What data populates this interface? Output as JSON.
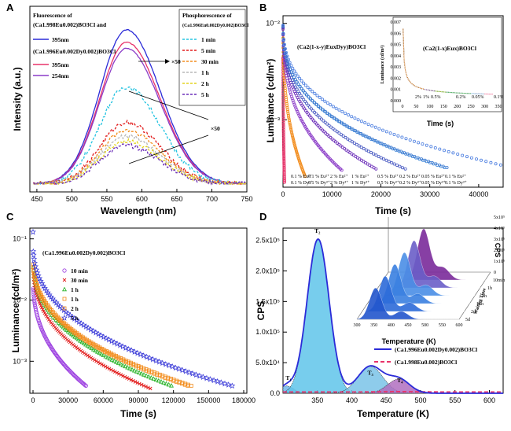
{
  "figure": {
    "panels": [
      {
        "letter": "A"
      },
      {
        "letter": "B"
      },
      {
        "letter": "C"
      },
      {
        "letter": "D"
      }
    ]
  },
  "chart_data": [
    {
      "id": "A",
      "type": "line",
      "xlabel": "Wavelength (nm)",
      "ylabel": "Intensity (a.u.)",
      "xlim": [
        440,
        750
      ],
      "xticks": [
        450,
        500,
        550,
        600,
        650,
        700,
        750
      ],
      "legend_left_title_1": "Fluorescence of",
      "legend_left_title_2": "(Ca1.998Eu0.002)BO3Cl and",
      "legend_left_title_3": "(Ca1.996Eu0.002Dy0.002)BO3Cl",
      "legend_right_title_1": "Phosphorescence of",
      "legend_right_title_2": "(Ca1.996Eu0.002Dy0.002)BO3Cl",
      "annotation": "×50",
      "series": [
        {
          "name": "395nm",
          "group": "fluor_Eu",
          "color": "#2b2bd8",
          "dash": "",
          "peak_nm": 578,
          "peak": 1.0
        },
        {
          "name": "395nm",
          "group": "fluor_EuDy",
          "color": "#e8336a",
          "dash": "",
          "peak_nm": 578,
          "peak": 0.92
        },
        {
          "name": "254nm",
          "group": "fluor_EuDy",
          "color": "#8b3cc8",
          "dash": "",
          "peak_nm": 578,
          "peak": 0.88
        },
        {
          "name": "1 min",
          "group": "phos",
          "color": "#22c3e0",
          "dash": "3,2",
          "peak_nm": 578,
          "peak": 0.63
        },
        {
          "name": "5 min",
          "group": "phos",
          "color": "#e21b1b",
          "dash": "3,2",
          "peak_nm": 578,
          "peak": 0.4
        },
        {
          "name": "30 min",
          "group": "phos",
          "color": "#f28c1c",
          "dash": "3,2",
          "peak_nm": 578,
          "peak": 0.35
        },
        {
          "name": "1 h",
          "group": "phos",
          "color": "#b7b7b7",
          "dash": "3,2",
          "peak_nm": 578,
          "peak": 0.31
        },
        {
          "name": "2 h",
          "group": "phos",
          "color": "#e4d41f",
          "dash": "3,2",
          "peak_nm": 578,
          "peak": 0.28
        },
        {
          "name": "5 h",
          "group": "phos",
          "color": "#6a2cb8",
          "dash": "3,2",
          "peak_nm": 578,
          "peak": 0.25
        }
      ]
    },
    {
      "id": "B",
      "type": "scatter",
      "xlabel": "Time (s)",
      "ylabel": "Luminance (cd/m²)",
      "xlim": [
        0,
        45000
      ],
      "xticks": [
        0,
        10000,
        20000,
        30000,
        40000
      ],
      "yscale": "log",
      "ylim": [
        0.0002,
        0.012
      ],
      "yticks_labels": [
        "10⁻²",
        "10⁻³"
      ],
      "main_label": "(Ca2(1-x-y)EuxDyy)BO3Cl",
      "inset_label": "(Ca2(1-x)Eux)BO3Cl",
      "inset_xlabel": "Time (s)",
      "inset_ylabel": "Luminance (cd/m²)",
      "inset_xticks": [
        0,
        50,
        100,
        150,
        200,
        250,
        300,
        350
      ],
      "inset_yticks": [
        "0.000",
        "0.001",
        "0.002",
        "0.003",
        "0.004",
        "0.005",
        "0.006",
        "0.007"
      ],
      "inset_series_labels": [
        "2%",
        "1%",
        "0.5%",
        "0.2%",
        "0.05%",
        "0.1%"
      ],
      "series_labels": [
        {
          "l1": "0.1 % Eu²⁺",
          "l2": "0.1 % Dy³⁺"
        },
        {
          "l1": "0.1 % Eu²⁺",
          "l2": "0.1 % Dy³⁺"
        },
        {
          "l1": "2 % Eu²⁺",
          "l2": "2 % Dy³⁺"
        },
        {
          "l1": "1 % Eu²⁺",
          "l2": "1 % Dy³⁺"
        },
        {
          "l1": "0.5 % Eu²⁺",
          "l2": "0.5 % Dy³⁺"
        },
        {
          "l1": "0.2 % Eu²⁺",
          "l2": "0.2 % Dy³⁺"
        },
        {
          "l1": "0.05 % Eu²⁺",
          "l2": "0.05 % Dy³⁺"
        },
        {
          "l1": "0.1 % Eu²⁺",
          "l2": "0.1 % Dy³⁺"
        }
      ],
      "series": [
        {
          "color": "#e8336a",
          "end_time": 300,
          "end_lum": 0.00023
        },
        {
          "color": "#f28c1c",
          "end_time": 4500,
          "end_lum": 0.00026
        },
        {
          "color": "#8b3cc8",
          "end_time": 12000,
          "end_lum": 0.0003
        },
        {
          "color": "#6a2cb8",
          "end_time": 19000,
          "end_lum": 0.00031
        },
        {
          "color": "#4455c0",
          "end_time": 25000,
          "end_lum": 0.00031
        },
        {
          "color": "#3a86d8",
          "end_time": 33000,
          "end_lum": 0.00032
        },
        {
          "color": "#3f7ad0",
          "end_time": 33500,
          "end_lum": 0.00032
        },
        {
          "color": "#4a7de0",
          "end_time": 44500,
          "end_lum": 0.00034
        }
      ]
    },
    {
      "id": "C",
      "type": "scatter",
      "title": "(Ca1.996Eu0.002Dy0.002)BO3Cl",
      "xlabel": "Time (s)",
      "ylabel": "Luminance (cd/m²)",
      "xlim": [
        0,
        180000
      ],
      "xticks": [
        0,
        30000,
        60000,
        90000,
        120000,
        150000,
        180000
      ],
      "yscale": "log",
      "ylim": [
        0.0003,
        0.15
      ],
      "yticks_labels": [
        "10⁻¹",
        "10⁻²",
        "10⁻³"
      ],
      "series": [
        {
          "name": "10 min",
          "marker": "circle",
          "color": "#9b3ee0",
          "end_time": 45000,
          "end_lum": 0.0004
        },
        {
          "name": "30 min",
          "marker": "x",
          "color": "#e21b1b",
          "end_time": 100000,
          "end_lum": 0.00036
        },
        {
          "name": "1 h",
          "marker": "triangle",
          "color": "#20b020",
          "end_time": 118000,
          "end_lum": 0.0004
        },
        {
          "name": "1 h",
          "marker": "square",
          "color": "#f28c1c",
          "end_time": 132000,
          "end_lum": 0.0004
        },
        {
          "name": "2 h",
          "marker": "square",
          "color": "#f28c1c",
          "end_time": 135000,
          "end_lum": 0.0004
        },
        {
          "name": "5 h",
          "marker": "star",
          "color": "#3a3ad8",
          "end_time": 170000,
          "end_lum": 0.0004
        }
      ],
      "legend": [
        "10 min",
        "30 min",
        "1 h",
        "1 h",
        "2 h",
        "5 h"
      ]
    },
    {
      "id": "D",
      "type": "line",
      "xlabel": "Temperature (K)",
      "ylabel": "CPS",
      "xlim": [
        300,
        620
      ],
      "xticks": [
        350,
        400,
        450,
        500,
        550,
        600
      ],
      "ylim": [
        0,
        270000
      ],
      "yticks_labels": [
        "0.0",
        "5.0x10⁴",
        "1.0x10⁵",
        "1.5x10⁵",
        "2.0x10⁵",
        "2.5x10⁵"
      ],
      "yticks_values": [
        0,
        50000,
        100000,
        150000,
        200000,
        250000
      ],
      "peak_labels": [
        "T₁",
        "T₂",
        "T₃",
        "T₄"
      ],
      "peaks": [
        {
          "label": "T1",
          "center": 305,
          "height": 12000,
          "width": 10
        },
        {
          "label": "T2",
          "center": 351,
          "height": 252000,
          "width": 16
        },
        {
          "label": "T3",
          "center": 427,
          "height": 44000,
          "width": 18
        },
        {
          "label": "T4",
          "center": 468,
          "height": 23000,
          "width": 16
        }
      ],
      "legend": [
        "(Ca1.996Eu0.002Dy0.002)BO3Cl",
        "(Ca1.998Eu0.002)BO3Cl"
      ],
      "inset_xlabel": "Temperature (K)",
      "inset_ylabel": "CPS",
      "inset_depth_label": "Waiting Time",
      "inset_xticks": [
        300,
        350,
        400,
        450,
        500,
        550,
        600
      ],
      "inset_yticks": [
        "0",
        "1x10⁵",
        "2x10⁵",
        "3x10⁵",
        "4x10⁵",
        "5x10⁵"
      ],
      "inset_waits": [
        "10min",
        "1h",
        "4h",
        "16h",
        "2d",
        "5d"
      ]
    }
  ]
}
